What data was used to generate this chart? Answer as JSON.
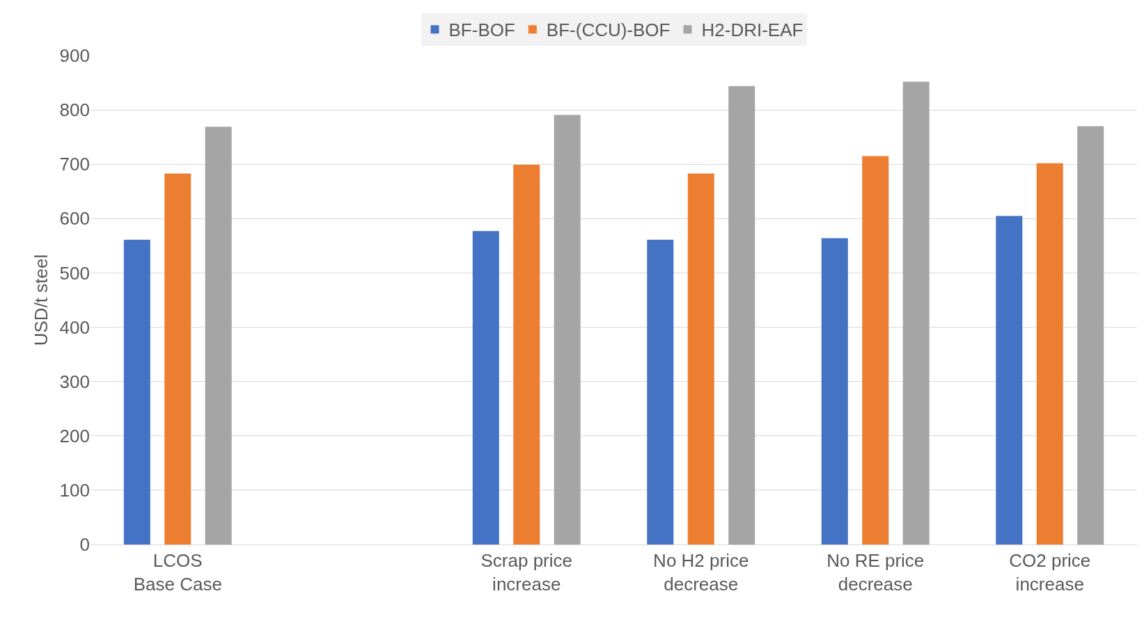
{
  "chart_data": {
    "type": "bar",
    "ylabel": "USD/t steel",
    "categories": [
      "LCOS Base Case",
      null,
      "Scrap price increase",
      "No H2 price decrease",
      "No RE price decrease",
      "CO2 price increase"
    ],
    "series": [
      {
        "name": "BF-BOF",
        "color": "#4472c4",
        "values": [
          561,
          null,
          577,
          561,
          564,
          605
        ]
      },
      {
        "name": "BF-(CCU)-BOF",
        "color": "#ed7d31",
        "values": [
          683,
          null,
          699,
          683,
          715,
          702
        ]
      },
      {
        "name": "H2-DRI-EAF",
        "color": "#a5a5a5",
        "values": [
          769,
          null,
          791,
          844,
          852,
          770
        ]
      }
    ],
    "ylim": [
      0,
      900
    ],
    "yticks": [
      0,
      100,
      200,
      300,
      400,
      500,
      600,
      700,
      800,
      900
    ],
    "grid": "y",
    "legend": "top"
  }
}
